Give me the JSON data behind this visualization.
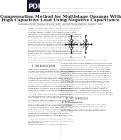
{
  "title_line1": "Compensation Method for Multistage Opamps With",
  "title_line2": "High Capacitive Load Using Negative Capacitance",
  "authors": "Gudivakula Ramki, Sanjeev Shrestha, IEEE, and Md. Monjul Bakhshir, Member, IEEE",
  "background_color": "#ffffff",
  "pdf_label_bg": "#1a1a2e",
  "title_color": "#222222",
  "text_color": "#333333",
  "section_color": "#111111",
  "line_color": "#999999",
  "circuit_line_color": "#111111"
}
